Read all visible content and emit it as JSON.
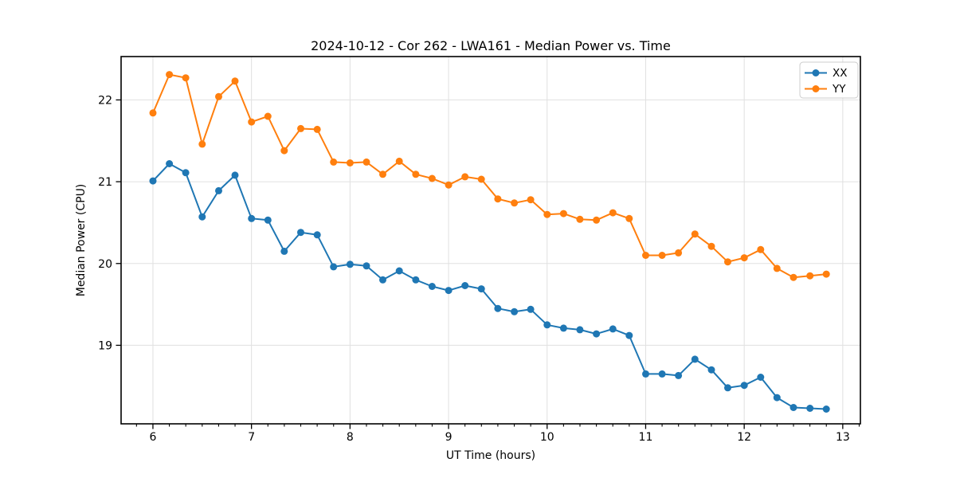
{
  "chart_data": {
    "type": "line",
    "title": "2024-10-12 - Cor 262 - LWA161 - Median Power vs. Time",
    "xlabel": "UT Time (hours)",
    "ylabel": "Median Power (CPU)",
    "xlim": [
      5.677,
      13.179
    ],
    "ylim": [
      18.04,
      22.53
    ],
    "xticks": [
      6,
      7,
      8,
      9,
      10,
      11,
      12,
      13
    ],
    "yticks": [
      19,
      20,
      21,
      22
    ],
    "x_minor_step_hours": 0.1667,
    "grid": true,
    "legend_position": "upper right",
    "background_color": "#ffffff",
    "grid_color": "#e0e0e0",
    "x": [
      6.0,
      6.167,
      6.333,
      6.5,
      6.667,
      6.833,
      7.0,
      7.167,
      7.333,
      7.5,
      7.667,
      7.833,
      8.0,
      8.167,
      8.333,
      8.5,
      8.667,
      8.833,
      9.0,
      9.167,
      9.333,
      9.5,
      9.667,
      9.833,
      10.0,
      10.167,
      10.333,
      10.5,
      10.667,
      10.833,
      11.0,
      11.167,
      11.333,
      11.5,
      11.667,
      11.833,
      12.0,
      12.167,
      12.333,
      12.5,
      12.667,
      12.833
    ],
    "series": [
      {
        "name": "XX",
        "color": "#1f77b4",
        "values": [
          21.01,
          21.22,
          21.11,
          20.57,
          20.89,
          21.08,
          20.55,
          20.53,
          20.15,
          20.38,
          20.35,
          19.96,
          19.99,
          19.97,
          19.8,
          19.91,
          19.8,
          19.72,
          19.67,
          19.73,
          19.69,
          19.45,
          19.41,
          19.44,
          19.25,
          19.21,
          19.19,
          19.14,
          19.2,
          19.12,
          18.65,
          18.65,
          18.63,
          18.83,
          18.7,
          18.48,
          18.51,
          18.61,
          18.36,
          18.24,
          18.23,
          18.22
        ]
      },
      {
        "name": "YY",
        "color": "#ff7f0e",
        "values": [
          21.84,
          22.31,
          22.27,
          21.46,
          22.04,
          22.23,
          21.73,
          21.8,
          21.38,
          21.65,
          21.64,
          21.24,
          21.23,
          21.24,
          21.09,
          21.25,
          21.09,
          21.04,
          20.96,
          21.06,
          21.03,
          20.79,
          20.74,
          20.78,
          20.6,
          20.61,
          20.54,
          20.53,
          20.62,
          20.55,
          20.1,
          20.1,
          20.13,
          20.36,
          20.21,
          20.02,
          20.07,
          20.17,
          19.94,
          19.83,
          19.85,
          19.87
        ]
      }
    ]
  }
}
